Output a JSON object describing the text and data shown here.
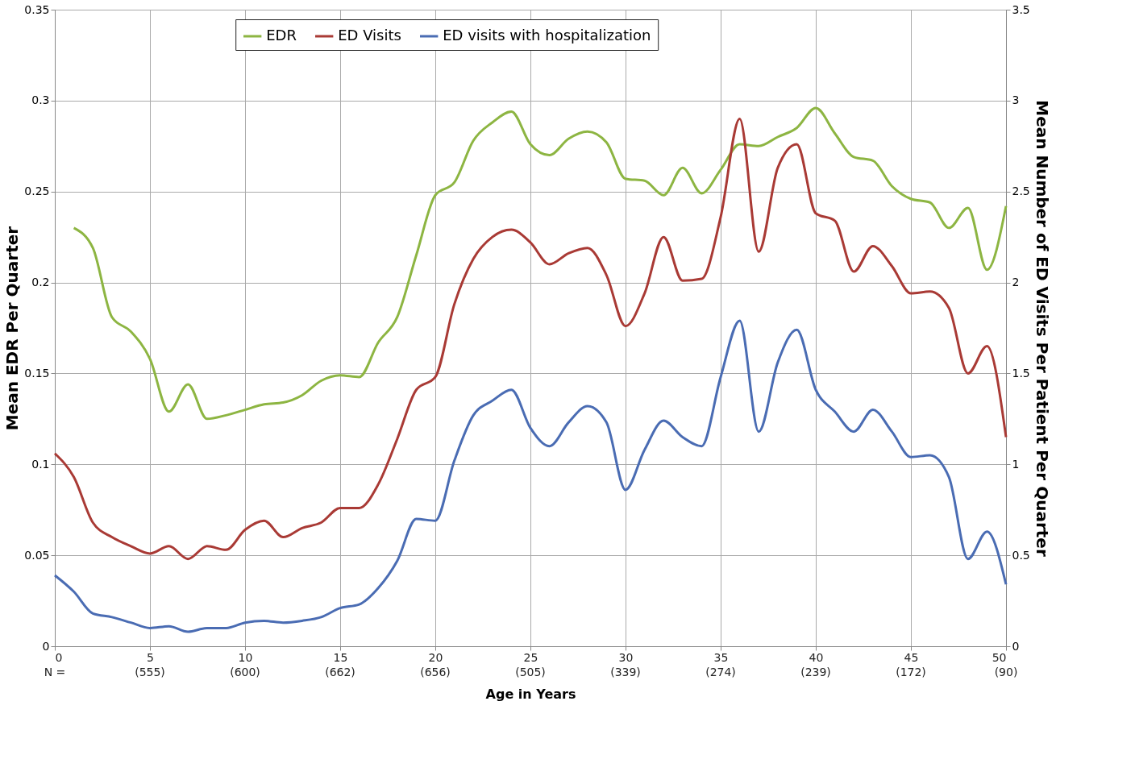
{
  "chart_data": {
    "type": "line",
    "xlabel": "Age in Years",
    "ylabel": "Mean EDR Per Quarter",
    "y2label": "Mean Number of ED Visits Per Patient Per Quarter",
    "xlim": [
      0,
      50
    ],
    "xticks": [
      0,
      5,
      10,
      15,
      20,
      25,
      30,
      35,
      40,
      45,
      50
    ],
    "annotations": [
      "N =",
      "(555)",
      "(600)",
      "(662)",
      "(656)",
      "(505)",
      "(339)",
      "(274)",
      "(239)",
      "(172)",
      "(90)"
    ],
    "ylim": [
      0,
      0.35
    ],
    "yticks": [
      0,
      0.05,
      0.1,
      0.15,
      0.2,
      0.25,
      0.3,
      0.35
    ],
    "y2lim": [
      0,
      3.5
    ],
    "y2ticks": [
      0,
      0.5,
      1,
      1.5,
      2,
      2.5,
      3,
      3.5
    ],
    "grid": true,
    "legend": "top",
    "series": [
      {
        "name": "EDR",
        "color": "#8db542",
        "x": [
          1,
          2,
          3,
          4,
          5,
          6,
          7,
          8,
          9,
          10,
          11,
          12,
          13,
          14,
          15,
          16,
          17,
          18,
          19,
          20,
          21,
          22,
          23,
          24,
          25,
          26,
          27,
          28,
          29,
          30,
          31,
          32,
          33,
          34,
          35,
          36,
          37,
          38,
          39,
          40,
          41,
          42,
          43,
          44,
          45,
          46,
          47,
          48,
          49,
          50
        ],
        "values": [
          0.23,
          0.219,
          0.181,
          0.173,
          0.158,
          0.129,
          0.144,
          0.125,
          0.127,
          0.13,
          0.133,
          0.134,
          0.138,
          0.146,
          0.149,
          0.148,
          0.167,
          0.181,
          0.215,
          0.248,
          0.255,
          0.278,
          0.288,
          0.294,
          0.276,
          0.27,
          0.279,
          0.283,
          0.277,
          0.257,
          0.256,
          0.248,
          0.263,
          0.249,
          0.262,
          0.276,
          0.275,
          0.28,
          0.285,
          0.296,
          0.282,
          0.269,
          0.267,
          0.253,
          0.246,
          0.244,
          0.23,
          0.241,
          0.207,
          0.242
        ]
      },
      {
        "name": "ED Visits",
        "color": "#a93a35",
        "axis": "y2",
        "x": [
          0,
          1,
          2,
          3,
          4,
          5,
          6,
          7,
          8,
          9,
          10,
          11,
          12,
          13,
          14,
          15,
          16,
          17,
          18,
          19,
          20,
          21,
          22,
          23,
          24,
          25,
          26,
          27,
          28,
          29,
          30,
          31,
          32,
          33,
          34,
          35,
          36,
          37,
          38,
          39,
          40,
          41,
          42,
          43,
          44,
          45,
          46,
          47,
          48,
          49,
          50
        ],
        "values": [
          1.06,
          0.93,
          0.68,
          0.6,
          0.55,
          0.51,
          0.55,
          0.48,
          0.55,
          0.53,
          0.64,
          0.69,
          0.6,
          0.65,
          0.68,
          0.76,
          0.76,
          0.89,
          1.14,
          1.41,
          1.48,
          1.88,
          2.13,
          2.25,
          2.29,
          2.22,
          2.1,
          2.16,
          2.19,
          2.04,
          1.76,
          1.94,
          2.25,
          2.01,
          2.02,
          2.36,
          2.9,
          2.17,
          2.63,
          2.76,
          2.38,
          2.34,
          2.06,
          2.2,
          2.09,
          1.94,
          1.95,
          1.86,
          1.5,
          1.65,
          1.15
        ]
      },
      {
        "name": "ED visits with hospitalization",
        "color": "#4a6cb3",
        "axis": "y2",
        "x": [
          0,
          1,
          2,
          3,
          4,
          5,
          6,
          7,
          8,
          9,
          10,
          11,
          12,
          13,
          14,
          15,
          16,
          17,
          18,
          19,
          20,
          21,
          22,
          23,
          24,
          25,
          26,
          27,
          28,
          29,
          30,
          31,
          32,
          33,
          34,
          35,
          36,
          37,
          38,
          39,
          40,
          41,
          42,
          43,
          44,
          45,
          46,
          47,
          48,
          49,
          50
        ],
        "values": [
          0.39,
          0.3,
          0.18,
          0.16,
          0.13,
          0.1,
          0.11,
          0.08,
          0.1,
          0.1,
          0.13,
          0.14,
          0.13,
          0.14,
          0.16,
          0.21,
          0.23,
          0.32,
          0.47,
          0.7,
          0.69,
          1.02,
          1.27,
          1.35,
          1.41,
          1.2,
          1.1,
          1.23,
          1.32,
          1.23,
          0.86,
          1.08,
          1.24,
          1.15,
          1.1,
          1.48,
          1.79,
          1.18,
          1.56,
          1.74,
          1.41,
          1.29,
          1.18,
          1.3,
          1.18,
          1.04,
          1.05,
          0.93,
          0.48,
          0.63,
          0.34
        ]
      }
    ]
  }
}
